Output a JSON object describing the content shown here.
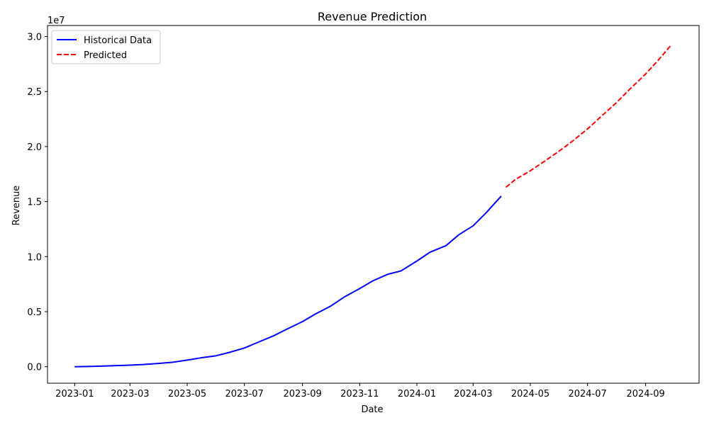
{
  "chart_data": {
    "type": "line",
    "title": "Revenue Prediction",
    "xlabel": "Date",
    "ylabel": "Revenue",
    "y_offset_label": "1e7",
    "xlim": [
      "2022-12-03",
      "2024-10-28"
    ],
    "ylim": [
      -0.15,
      3.1
    ],
    "y_ticks": [
      0.0,
      0.5,
      1.0,
      1.5,
      2.0,
      2.5,
      3.0
    ],
    "y_tick_labels": [
      "0.0",
      "0.5",
      "1.0",
      "1.5",
      "2.0",
      "2.5",
      "3.0"
    ],
    "x_ticks": [
      "2023-01-01",
      "2023-03-01",
      "2023-05-01",
      "2023-07-01",
      "2023-09-01",
      "2023-11-01",
      "2024-01-01",
      "2024-03-01",
      "2024-05-01",
      "2024-07-01",
      "2024-09-01"
    ],
    "x_tick_labels": [
      "2023-01",
      "2023-03",
      "2023-05",
      "2023-07",
      "2023-09",
      "2023-11",
      "2024-01",
      "2024-03",
      "2024-05",
      "2024-07",
      "2024-09"
    ],
    "legend_position": "upper left",
    "grid": false,
    "series": [
      {
        "name": "Historical Data",
        "color": "#0000ff",
        "style": "solid",
        "x": [
          "2023-01-01",
          "2023-01-15",
          "2023-02-01",
          "2023-02-15",
          "2023-03-01",
          "2023-03-15",
          "2023-04-01",
          "2023-04-15",
          "2023-05-01",
          "2023-05-15",
          "2023-06-01",
          "2023-06-15",
          "2023-07-01",
          "2023-07-15",
          "2023-08-01",
          "2023-08-15",
          "2023-09-01",
          "2023-09-15",
          "2023-10-01",
          "2023-10-15",
          "2023-11-01",
          "2023-11-15",
          "2023-12-01",
          "2023-12-15",
          "2024-01-01",
          "2024-01-15",
          "2024-02-01",
          "2024-02-15",
          "2024-03-01",
          "2024-03-15",
          "2024-03-31"
        ],
        "y": [
          0.0,
          0.002,
          0.006,
          0.01,
          0.014,
          0.02,
          0.03,
          0.04,
          0.06,
          0.08,
          0.1,
          0.13,
          0.17,
          0.22,
          0.28,
          0.34,
          0.41,
          0.48,
          0.55,
          0.63,
          0.71,
          0.78,
          0.84,
          0.87,
          0.96,
          1.04,
          1.1,
          1.2,
          1.28,
          1.4,
          1.55
        ]
      },
      {
        "name": "Predicted",
        "color": "#ff0000",
        "style": "dashed",
        "x": [
          "2024-04-05",
          "2024-04-15",
          "2024-05-01",
          "2024-05-15",
          "2024-06-01",
          "2024-06-15",
          "2024-07-01",
          "2024-07-15",
          "2024-08-01",
          "2024-08-15",
          "2024-09-01",
          "2024-09-15",
          "2024-09-28"
        ],
        "y": [
          1.63,
          1.7,
          1.78,
          1.86,
          1.96,
          2.05,
          2.16,
          2.27,
          2.4,
          2.52,
          2.66,
          2.79,
          2.92
        ]
      }
    ]
  }
}
